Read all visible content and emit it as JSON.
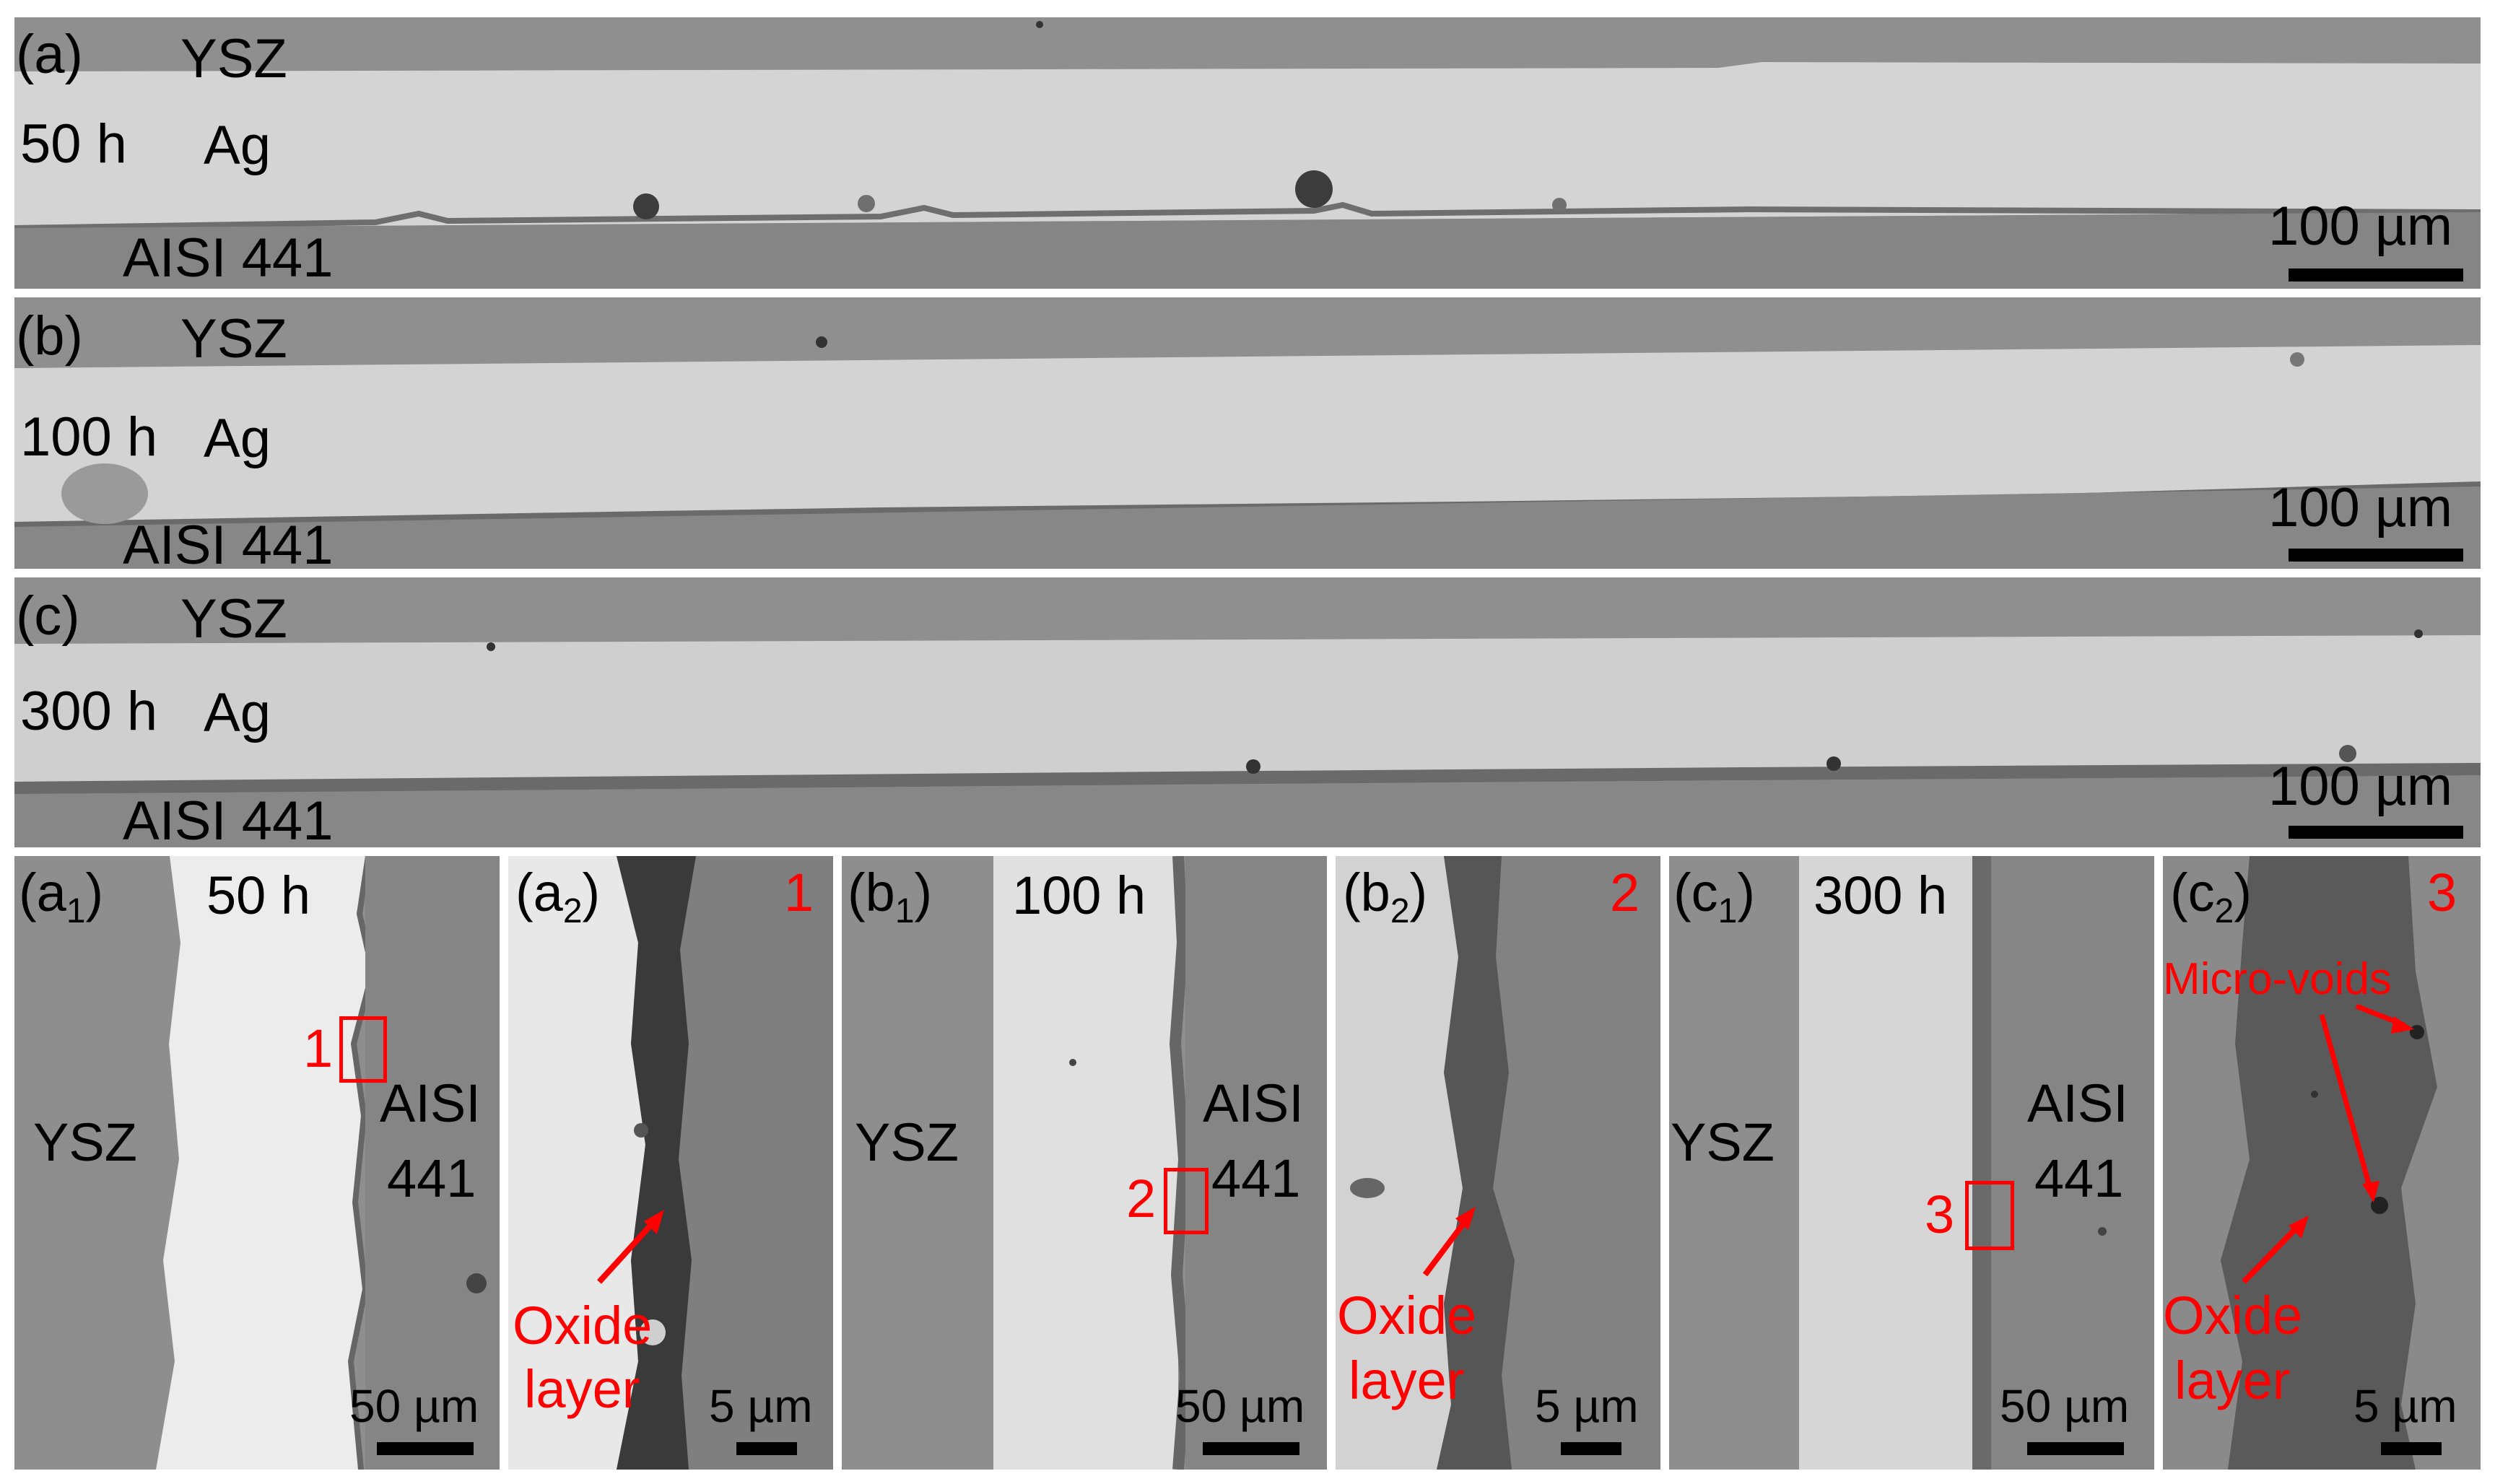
{
  "strips": [
    {
      "id": "a",
      "label": "(a)",
      "time": "50 h",
      "top_layer": "YSZ",
      "middle_layer": "Ag",
      "bottom_layer": "AISI 441",
      "scale": "100 µm"
    },
    {
      "id": "b",
      "label": "(b)",
      "time": "100 h",
      "top_layer": "YSZ",
      "middle_layer": "Ag",
      "bottom_layer": "AISI 441",
      "scale": "100 µm"
    },
    {
      "id": "c",
      "label": "(c)",
      "time": "300 h",
      "top_layer": "YSZ",
      "middle_layer": "Ag",
      "bottom_layer": "AISI 441",
      "scale": "100 µm"
    }
  ],
  "closeups": [
    {
      "label_main": "(a",
      "label_sub": "1",
      "label_end": ")",
      "time": "50 h",
      "left_layer": "YSZ",
      "right_layer_line1": "AISI",
      "right_layer_line2": "441",
      "marker": "1",
      "scale": "50 µm"
    },
    {
      "label_main": "(a",
      "label_sub": "2",
      "label_end": ")",
      "number": "1",
      "annotation_line1": "Oxide",
      "annotation_line2": "layer",
      "scale": "5 µm"
    },
    {
      "label_main": "(b",
      "label_sub": "1",
      "label_end": ")",
      "time": "100 h",
      "left_layer": "YSZ",
      "right_layer_line1": "AISI",
      "right_layer_line2": "441",
      "marker": "2",
      "scale": "50 µm"
    },
    {
      "label_main": "(b",
      "label_sub": "2",
      "label_end": ")",
      "number": "2",
      "annotation_line1": "Oxide",
      "annotation_line2": "layer",
      "scale": "5 µm"
    },
    {
      "label_main": "(c",
      "label_sub": "1",
      "label_end": ")",
      "time": "300 h",
      "left_layer": "YSZ",
      "right_layer_line1": "AISI",
      "right_layer_line2": "441",
      "marker": "3",
      "scale": "50 µm"
    },
    {
      "label_main": "(c",
      "label_sub": "2",
      "label_end": ")",
      "number": "3",
      "annotation_top": "Micro-voids",
      "annotation_line1": "Oxide",
      "annotation_line2": "layer",
      "scale": "5 µm"
    }
  ],
  "colors": {
    "ysz": "#8f8f8f",
    "ag": "#d3d3d3",
    "ag_bright": "#ececec",
    "steel": "#828282",
    "oxide": "#6a6a6a",
    "annotation": "#ff0000"
  }
}
